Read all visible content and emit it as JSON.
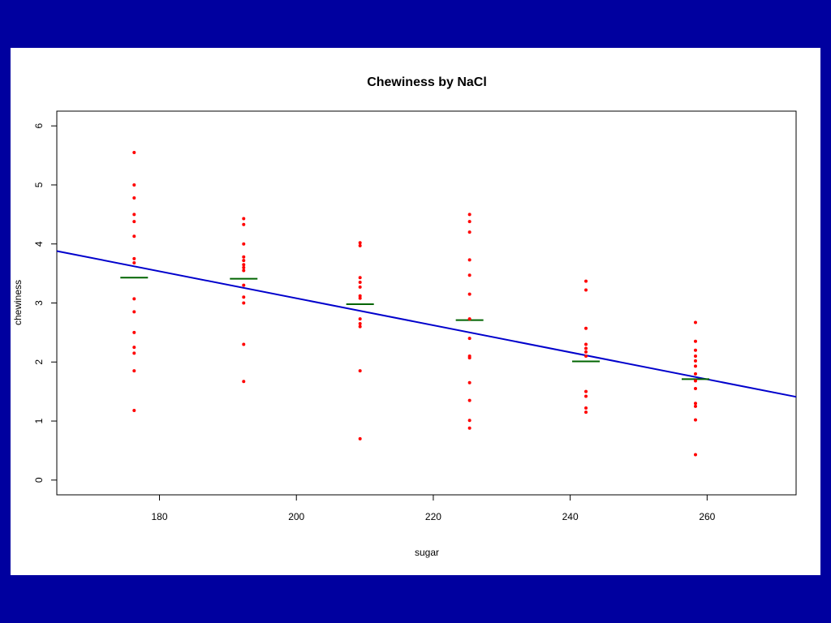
{
  "colors": {
    "background": "#00009f",
    "panel": "#ffffff",
    "points": "#ff0000",
    "means": "#006400",
    "fit_line": "#0000cc"
  },
  "chart_data": {
    "type": "scatter",
    "title": "Chewiness by NaCl",
    "xlabel": "sugar",
    "ylabel": "chewiness",
    "xlim": [
      165,
      273
    ],
    "ylim": [
      -0.25,
      6.25
    ],
    "x_ticks": [
      "180",
      "200",
      "220",
      "240",
      "260"
    ],
    "y_ticks": [
      "0",
      "1",
      "2",
      "3",
      "4",
      "5",
      "6"
    ],
    "grid": false,
    "legend": "none",
    "groups": [
      {
        "x": 176.3,
        "mean": 3.43,
        "values": [
          5.55,
          5.0,
          4.78,
          4.5,
          4.38,
          4.13,
          3.75,
          3.68,
          3.07,
          2.85,
          2.5,
          2.25,
          2.15,
          1.85,
          1.18
        ]
      },
      {
        "x": 192.3,
        "mean": 3.41,
        "values": [
          4.43,
          4.33,
          4.0,
          3.78,
          3.72,
          3.65,
          3.6,
          3.55,
          3.3,
          3.1,
          3.0,
          2.3,
          1.67
        ]
      },
      {
        "x": 209.3,
        "mean": 2.98,
        "values": [
          4.02,
          3.97,
          3.43,
          3.35,
          3.27,
          3.12,
          3.08,
          2.73,
          2.65,
          2.6,
          1.85,
          0.7
        ]
      },
      {
        "x": 225.3,
        "mean": 2.71,
        "values": [
          4.5,
          4.38,
          4.2,
          3.73,
          3.47,
          3.15,
          2.73,
          2.4,
          2.1,
          2.07,
          1.65,
          1.35,
          1.01,
          0.88
        ]
      },
      {
        "x": 242.3,
        "mean": 2.01,
        "values": [
          3.37,
          3.22,
          2.57,
          2.3,
          2.23,
          2.17,
          2.1,
          1.5,
          1.42,
          1.22,
          1.15
        ]
      },
      {
        "x": 258.3,
        "mean": 1.71,
        "values": [
          2.67,
          2.35,
          2.2,
          2.1,
          2.02,
          1.93,
          1.8,
          1.68,
          1.55,
          1.3,
          1.25,
          1.02,
          0.43
        ]
      }
    ],
    "fit_line": {
      "x1": 165,
      "y1": 3.88,
      "x2": 273,
      "y2": 1.41
    }
  }
}
